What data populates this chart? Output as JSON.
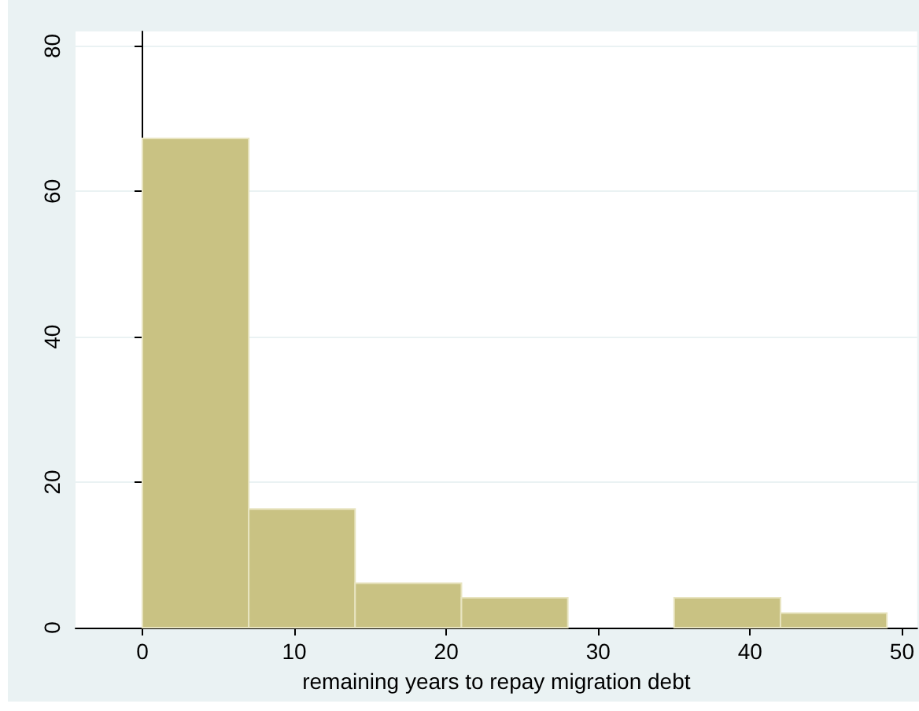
{
  "chart_data": {
    "type": "histogram",
    "xlabel": "remaining years to repay migration debt",
    "bins": [
      0,
      7,
      14,
      21,
      28,
      35,
      42,
      49
    ],
    "values": [
      67.3,
      16.3,
      6.1,
      4.1,
      0,
      4.1,
      2.0
    ],
    "color": "#c9c283",
    "xlim": [
      -4.4,
      51
    ],
    "xticks": [
      0,
      10,
      20,
      30,
      40,
      50
    ],
    "ylim": [
      0,
      82
    ],
    "yticks": [
      0,
      20,
      40,
      60,
      80
    ],
    "grid": "y"
  }
}
